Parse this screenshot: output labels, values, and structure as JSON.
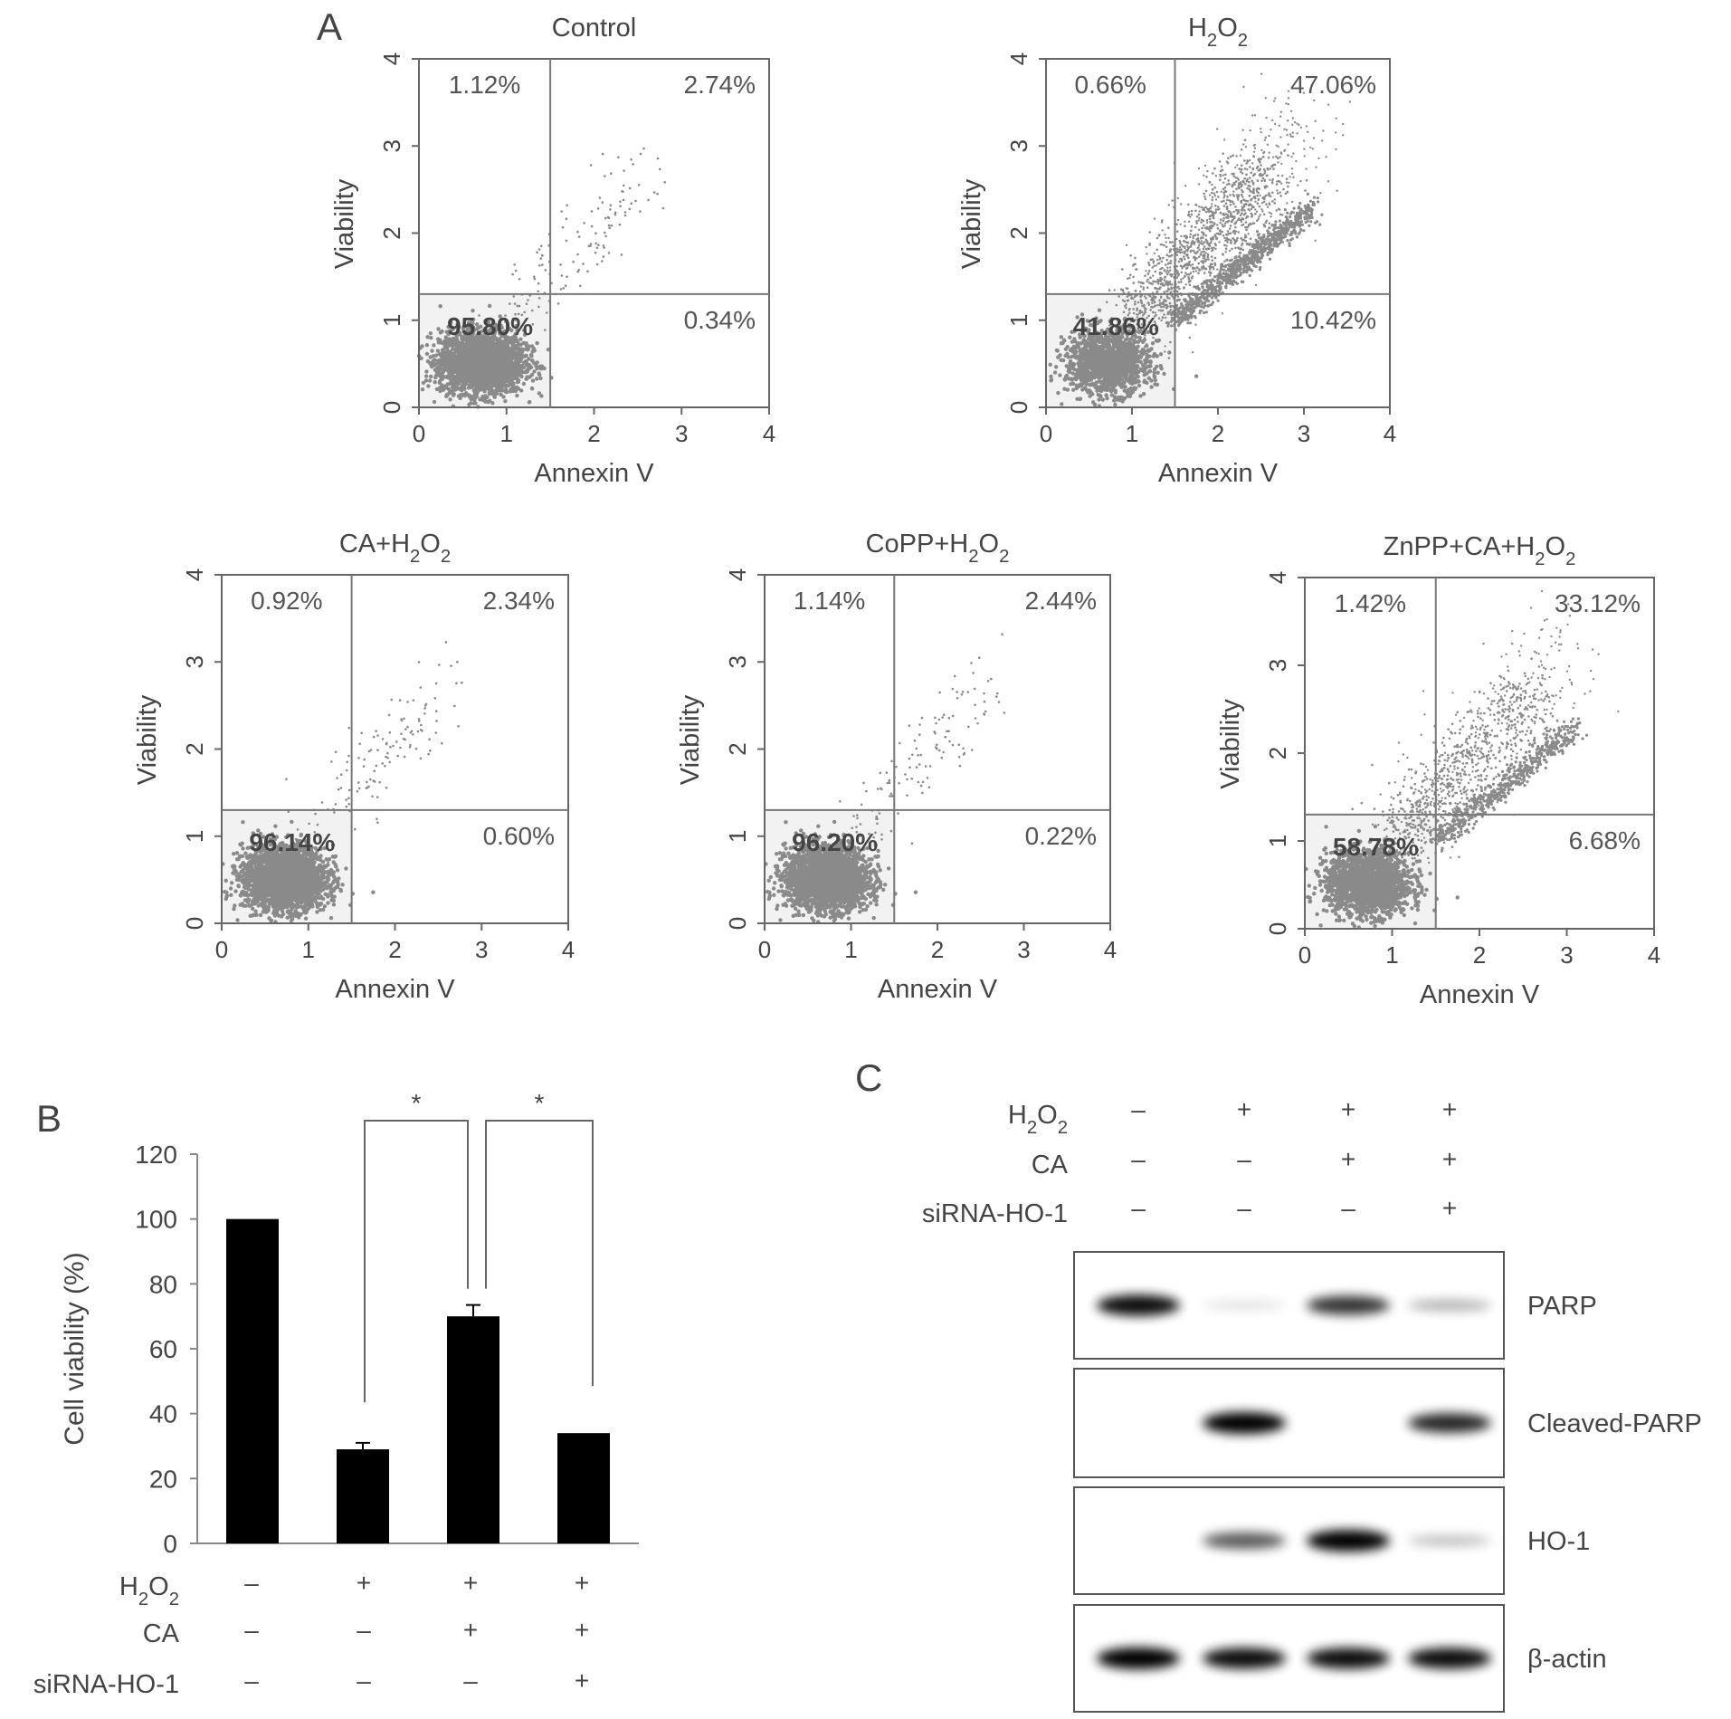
{
  "panel_A": {
    "label": "A",
    "xlabel": "Annexin V",
    "ylabel": "Viability",
    "xticks": [
      "0",
      "1",
      "2",
      "3",
      "4"
    ],
    "yticks": [
      "0",
      "1",
      "2",
      "3",
      "4"
    ],
    "plots": [
      {
        "title": {
          "main": "Control"
        },
        "q": [
          "1.12%",
          "2.74%",
          "95.80%",
          "0.34%"
        ]
      },
      {
        "title": {
          "main": "H",
          "sub": "2",
          "mid": "O",
          "sub2": "2"
        },
        "q": [
          "0.66%",
          "47.06%",
          "41.86%",
          "10.42%"
        ]
      },
      {
        "title": {
          "main": "CA+H",
          "sub": "2",
          "mid": "O",
          "sub2": "2"
        },
        "q": [
          "0.92%",
          "2.34%",
          "96.14%",
          "0.60%"
        ]
      },
      {
        "title": {
          "main": "CoPP+H",
          "sub": "2",
          "mid": "O",
          "sub2": "2"
        },
        "q": [
          "1.14%",
          "2.44%",
          "96.20%",
          "0.22%"
        ]
      },
      {
        "title": {
          "main": "ZnPP+CA+H",
          "sub": "2",
          "mid": "O",
          "sub2": "2"
        },
        "q": [
          "1.42%",
          "33.12%",
          "58.78%",
          "6.68%"
        ]
      }
    ]
  },
  "panel_B": {
    "label": "B",
    "ylabel": "Cell viability (%)",
    "yticks": [
      "0",
      "20",
      "40",
      "60",
      "80",
      "100",
      "120"
    ],
    "significance": [
      "*",
      "*"
    ],
    "rows": [
      {
        "label": {
          "main": "H",
          "sub": "2",
          "mid": "O",
          "sub2": "2"
        },
        "signs": [
          "–",
          "+",
          "+",
          "+"
        ]
      },
      {
        "label": {
          "main": "CA"
        },
        "signs": [
          "–",
          "–",
          "+",
          "+"
        ]
      },
      {
        "label": {
          "main": "siRNA-HO-1"
        },
        "signs": [
          "–",
          "–",
          "–",
          "+"
        ]
      }
    ]
  },
  "chart_data": {
    "type": "bar",
    "categories": [
      "1",
      "2",
      "3",
      "4"
    ],
    "values": [
      100,
      29,
      70,
      34
    ],
    "errors": [
      0,
      2,
      3.5,
      0
    ],
    "ylabel": "Cell viability (%)",
    "ylim": [
      0,
      120
    ],
    "bar_color": "#000000"
  },
  "panel_C": {
    "label": "C",
    "rows": [
      {
        "label": {
          "main": "H",
          "sub": "2",
          "mid": "O",
          "sub2": "2"
        },
        "signs": [
          "–",
          "+",
          "+",
          "+"
        ]
      },
      {
        "label": {
          "main": "CA"
        },
        "signs": [
          "–",
          "–",
          "+",
          "+"
        ]
      },
      {
        "label": {
          "main": "siRNA-HO-1"
        },
        "signs": [
          "–",
          "–",
          "–",
          "+"
        ]
      }
    ],
    "blots": [
      {
        "name": "PARP",
        "intensities": [
          0.95,
          0.12,
          0.8,
          0.3
        ]
      },
      {
        "name": "Cleaved-PARP",
        "intensities": [
          0.0,
          1.0,
          0.0,
          0.85
        ]
      },
      {
        "name": "HO-1",
        "intensities": [
          0.0,
          0.65,
          1.0,
          0.25
        ]
      },
      {
        "name": "β-actin",
        "intensities": [
          1.0,
          0.95,
          0.95,
          0.95
        ]
      }
    ]
  }
}
